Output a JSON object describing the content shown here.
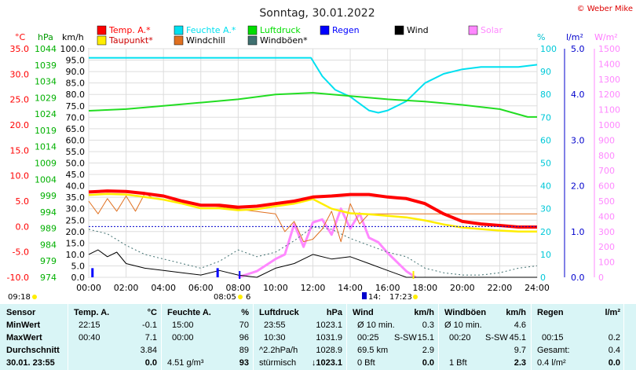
{
  "header": {
    "title": "Sonntag, 30.01.2022",
    "copyright": "© Weber Mike"
  },
  "legend": [
    {
      "label": "Temp. A.*",
      "color": "#ff0000"
    },
    {
      "label": "Feuchte A.*",
      "color": "#00e0f0"
    },
    {
      "label": "Luftdruck",
      "color": "#00dd00"
    },
    {
      "label": "Regen",
      "color": "#0000ff"
    },
    {
      "label": "Wind",
      "color": "#000000"
    },
    {
      "label": "Solar",
      "color": "#ff88ff"
    },
    {
      "label": "Taupunkt*",
      "color": "#ffee00"
    },
    {
      "label": "Windchill",
      "color": "#e07020"
    },
    {
      "label": "Windböen*",
      "color": "#407070"
    }
  ],
  "chart_data": {
    "type": "line",
    "title": "Sonntag, 30.01.2022",
    "x_axis": {
      "unit": "h",
      "range": [
        0,
        24
      ],
      "ticks": [
        "00:00",
        "02:00",
        "04:00",
        "06:00",
        "08:00",
        "10:00",
        "12:00",
        "14:00",
        "16:00",
        "18:00",
        "20:00",
        "22:00",
        "24:00"
      ]
    },
    "axes": {
      "temp": {
        "unit": "°C",
        "range": [
          -10,
          35
        ],
        "ticks": [
          "35.0",
          "30.0",
          "25.0",
          "20.0",
          "15.0",
          "10.0",
          "5.0",
          "0.0",
          "-5.0",
          "-10.0"
        ]
      },
      "pressure": {
        "unit": "hPa",
        "range": [
          974,
          1044
        ],
        "ticks": [
          "1044",
          "1039",
          "1034",
          "1029",
          "1024",
          "1019",
          "1014",
          "1009",
          "1004",
          "999",
          "994",
          "989",
          "984",
          "979",
          "974"
        ]
      },
      "wind": {
        "unit": "km/h",
        "range": [
          0,
          100
        ],
        "ticks": [
          "100.0",
          "95.0",
          "90.0",
          "85.0",
          "80.0",
          "75.0",
          "70.0",
          "65.0",
          "60.0",
          "55.0",
          "50.0",
          "45.0",
          "40.0",
          "35.0",
          "30.0",
          "25.0",
          "20.0",
          "15.0",
          "10.0",
          "5.0",
          "0.0"
        ]
      },
      "humidity": {
        "unit": "%",
        "range": [
          0,
          100
        ],
        "ticks": [
          "100",
          "90",
          "80",
          "70",
          "60",
          "50",
          "40",
          "30",
          "20",
          "10",
          "0"
        ]
      },
      "rain": {
        "unit": "l/m²",
        "range": [
          0,
          5
        ],
        "ticks": [
          "5.0",
          "4.0",
          "3.0",
          "2.0",
          "1.0",
          "0.0"
        ]
      },
      "solar": {
        "unit": "W/m²",
        "range": [
          0,
          1500
        ],
        "ticks": [
          "1500",
          "1400",
          "1300",
          "1200",
          "1100",
          "1000",
          "900",
          "800",
          "700",
          "600",
          "500",
          "400",
          "300",
          "200",
          "100",
          "0"
        ]
      }
    },
    "series": [
      {
        "name": "Temp. A.*",
        "axis": "temp",
        "x": [
          0,
          1,
          2,
          3,
          4,
          5,
          6,
          7,
          8,
          9,
          10,
          11,
          12,
          13,
          14,
          15,
          16,
          17,
          18,
          19,
          20,
          21,
          22,
          23,
          24
        ],
        "values": [
          6.8,
          7.0,
          6.9,
          6.5,
          6.0,
          5.0,
          4.2,
          4.2,
          3.8,
          4.0,
          4.5,
          5.0,
          5.8,
          6.0,
          6.3,
          6.3,
          5.8,
          5.5,
          4.5,
          2.5,
          1.0,
          0.5,
          0.2,
          -0.1,
          -0.1
        ]
      },
      {
        "name": "Taupunkt*",
        "axis": "temp",
        "x": [
          0,
          1,
          2,
          3,
          4,
          5,
          6,
          7,
          8,
          9,
          10,
          11,
          12,
          13,
          14,
          15,
          16,
          17,
          18,
          19,
          20,
          21,
          22,
          23,
          24
        ],
        "values": [
          6.2,
          6.4,
          6.3,
          5.8,
          5.3,
          4.5,
          3.6,
          3.6,
          3.2,
          3.4,
          4.0,
          4.5,
          5.4,
          3.5,
          2.6,
          2.4,
          2.1,
          1.8,
          1.2,
          0.4,
          -0.2,
          -0.5,
          -0.8,
          -1.0,
          -1.0
        ]
      },
      {
        "name": "Luftdruck",
        "axis": "pressure",
        "x": [
          0,
          2,
          4,
          6,
          8,
          10,
          12,
          14,
          16,
          18,
          20,
          22,
          23.5,
          24
        ],
        "values": [
          1025.0,
          1025.5,
          1026.5,
          1027.5,
          1028.5,
          1030.0,
          1030.5,
          1029.5,
          1028.5,
          1027.8,
          1026.8,
          1025.5,
          1023.1,
          1023.1
        ]
      },
      {
        "name": "Feuchte A.*",
        "axis": "humidity",
        "x": [
          0,
          8,
          11.9,
          12.5,
          13.2,
          14,
          15,
          15.5,
          16,
          17,
          18,
          19,
          20,
          21,
          22,
          23,
          24
        ],
        "values": [
          96,
          96,
          96,
          88,
          82,
          79,
          73,
          72,
          73,
          77,
          85,
          89,
          91,
          92,
          92,
          92,
          93
        ]
      },
      {
        "name": "Wind",
        "axis": "wind",
        "x": [
          0,
          0.5,
          1,
          1.5,
          2,
          3,
          4,
          5,
          6,
          7,
          8,
          9,
          10,
          11,
          12,
          13,
          14,
          15,
          16,
          17,
          18,
          24
        ],
        "values": [
          10,
          12,
          9,
          11,
          6,
          4,
          3,
          2,
          1,
          3,
          1,
          0,
          4,
          6,
          10,
          8,
          9,
          6,
          3,
          0,
          0,
          0
        ]
      },
      {
        "name": "Windböen*",
        "axis": "wind",
        "x": [
          0,
          1,
          2,
          3,
          4,
          5,
          6,
          7,
          8,
          9,
          10,
          11,
          12,
          13,
          14,
          15,
          16,
          17,
          18,
          19,
          20,
          21,
          22,
          23,
          24
        ],
        "values": [
          21,
          19,
          14,
          10,
          8,
          6,
          4,
          7,
          12,
          9,
          11,
          16,
          22,
          21,
          17,
          14,
          11,
          9,
          4,
          2,
          1,
          1,
          2,
          4,
          5
        ]
      },
      {
        "name": "Windchill",
        "axis": "temp",
        "x": [
          0,
          0.5,
          1,
          1.5,
          2,
          2.5,
          3,
          3.5,
          10,
          10.5,
          11,
          11.5,
          12,
          12.5,
          13,
          13.5,
          14,
          14.5,
          15,
          24
        ],
        "values": [
          5.0,
          2.5,
          5.5,
          3.0,
          6.0,
          3.0,
          6.5,
          5.5,
          2.5,
          -1.0,
          1.0,
          -3.0,
          -2.5,
          -0.5,
          3.0,
          -3.0,
          4.5,
          0.5,
          2.5,
          2.5
        ]
      },
      {
        "name": "Solar",
        "axis": "solar",
        "x": [
          8,
          9,
          10,
          10.5,
          11,
          11.5,
          12,
          12.5,
          13,
          13.5,
          14,
          14.5,
          15,
          15.5,
          16,
          16.5,
          17,
          17.5
        ],
        "values": [
          0,
          40,
          120,
          150,
          350,
          200,
          360,
          380,
          280,
          450,
          320,
          420,
          260,
          230,
          160,
          100,
          40,
          0
        ]
      },
      {
        "name": "Regen",
        "axis": "rain",
        "x": [
          0.2,
          6.9
        ],
        "values": [
          0.2,
          0.2
        ]
      }
    ],
    "markers": {
      "sunrise": "08:05",
      "sunset": "17:23",
      "temp_min_time": "09:18",
      "bottom_labels": [
        "09:18",
        "08:05",
        "6",
        "14:",
        "17:23"
      ]
    }
  },
  "table": {
    "headers": {
      "sensor": "Sensor",
      "temp": "Temp. A.",
      "temp_unit": "°C",
      "hum": "Feuchte A.",
      "hum_unit": "%",
      "press": "Luftdruck",
      "press_unit": "hPa",
      "wind": "Wind",
      "wind_unit": "km/h",
      "gust": "Windböen",
      "gust_unit": "km/h",
      "rain": "Regen",
      "rain_unit": "l/m²"
    },
    "rows": {
      "min": "MinWert",
      "max": "MaxWert",
      "avg": "Durchschnitt",
      "now": "30.01. 23:55"
    },
    "temp": {
      "min_time": "22:15",
      "min": "-0.1",
      "max_time": "00:40",
      "max": "7.1",
      "avg": "3.84",
      "now": "0.0"
    },
    "hum": {
      "min_time": "15:00",
      "min": "70",
      "max_time": "00:00",
      "max": "96",
      "avg": "89",
      "abs": "4.51 g/m³",
      "now": "93"
    },
    "press": {
      "min_time": "23:55",
      "min": "1023.1",
      "max_time": "10:30",
      "max": "1031.9",
      "trend_label": "^2.2hPa/h",
      "avg": "1028.9",
      "trend": "stürmisch",
      "now": "↓1023.1"
    },
    "wind": {
      "min_label": "Ø 10 min.",
      "min": "0.3",
      "max_time": "00:25",
      "max_dir": "S-SW",
      "max": "15.1",
      "dist": "69.5 km",
      "avg": "2.9",
      "bft": "0 Bft",
      "now": "0.0"
    },
    "gust": {
      "min_label": "Ø 10 min.",
      "min": "4.6",
      "max_time": "00:20",
      "max_dir": "S-SW",
      "max": "45.1",
      "avg": "9.7",
      "bft": "1 Bft",
      "now": "2.3"
    },
    "rain": {
      "max_time": "00:15",
      "max": "0.2",
      "total_label": "Gesamt:",
      "total": "0.4",
      "now": "0.4 l/m²",
      "now_value": "0.0"
    }
  }
}
